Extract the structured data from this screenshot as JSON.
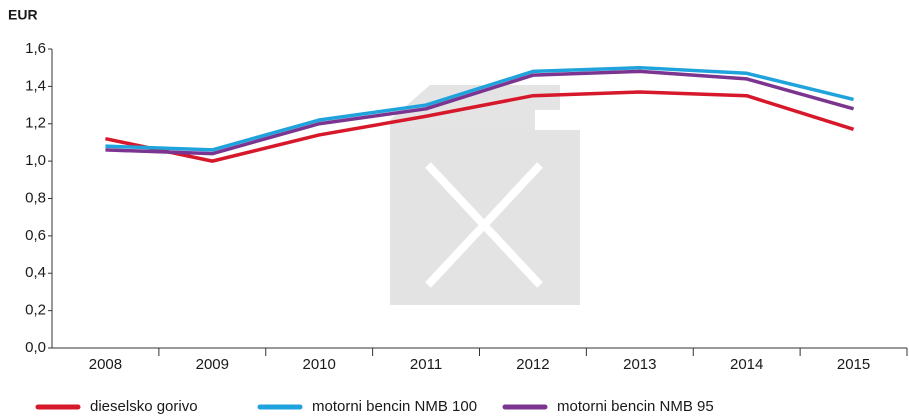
{
  "chart_data": {
    "type": "line",
    "y_axis_label": "EUR",
    "categories": [
      "2008",
      "2009",
      "2010",
      "2011",
      "2012",
      "2013",
      "2014",
      "2015"
    ],
    "series": [
      {
        "name": "dieselsko gorivo",
        "color": "#d7182a",
        "values": [
          1.12,
          1.0,
          1.14,
          1.24,
          1.35,
          1.37,
          1.35,
          1.17
        ]
      },
      {
        "name": "motorni bencin NMB 100",
        "color": "#1fa3dc",
        "values": [
          1.08,
          1.06,
          1.22,
          1.3,
          1.48,
          1.5,
          1.47,
          1.33
        ]
      },
      {
        "name": "motorni bencin NMB 95",
        "color": "#7b3590",
        "values": [
          1.06,
          1.04,
          1.2,
          1.28,
          1.46,
          1.48,
          1.44,
          1.28
        ]
      }
    ],
    "ylim": [
      0,
      1.6
    ],
    "yticks": [
      {
        "value": 0,
        "label": "0,0"
      },
      {
        "value": 0.2,
        "label": "0,2"
      },
      {
        "value": 0.4,
        "label": "0,4"
      },
      {
        "value": 0.6,
        "label": "0,6"
      },
      {
        "value": 0.8,
        "label": "0,8"
      },
      {
        "value": 1.0,
        "label": "1,0"
      },
      {
        "value": 1.2,
        "label": "1,2"
      },
      {
        "value": 1.4,
        "label": "1,4"
      },
      {
        "value": 1.6,
        "label": "1,6"
      }
    ],
    "grid": false,
    "legend": "bottom"
  }
}
